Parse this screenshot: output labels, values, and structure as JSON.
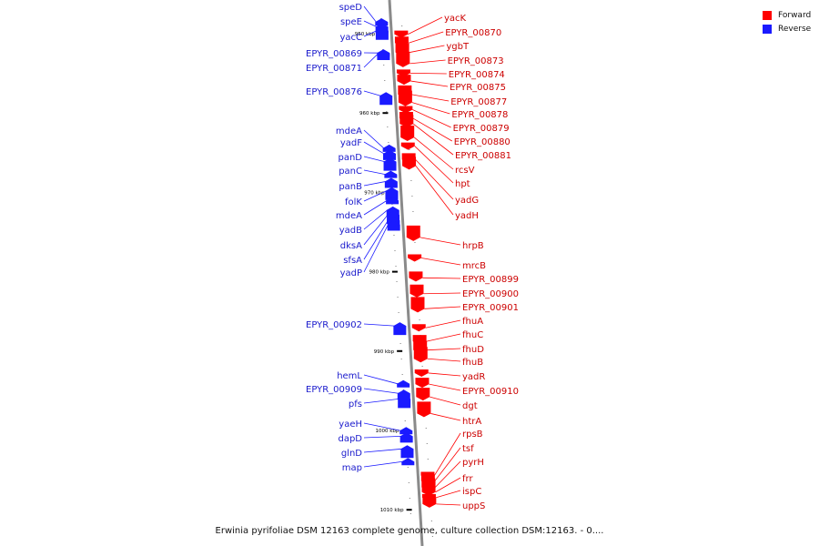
{
  "caption": "Erwinia pyrifoliae DSM 12163 complete genome, culture collection DSM:12163. - 0....",
  "legend": [
    {
      "label": "Forward",
      "color": "#ff0000"
    },
    {
      "label": "Reverse",
      "color": "#1a1aff"
    }
  ],
  "colors": {
    "forward": "#ff0000",
    "reverse": "#1a1aff",
    "backbone": "#999999",
    "forward_label": "#cc0000",
    "reverse_label": "#1a1acc"
  },
  "ticks": [
    {
      "label": "950 kbp",
      "kbp": 950
    },
    {
      "label": "960 kbp",
      "kbp": 960
    },
    {
      "label": "970 kbp",
      "kbp": 970
    },
    {
      "label": "980 kbp",
      "kbp": 980
    },
    {
      "label": "990 kbp",
      "kbp": 990
    },
    {
      "label": "1000 kbp",
      "kbp": 1000
    },
    {
      "label": "1010 kbp",
      "kbp": 1010
    }
  ],
  "reverse_genes": [
    {
      "name": "speD",
      "kbp": 948.3
    },
    {
      "name": "speE",
      "kbp": 948.9
    },
    {
      "name": "yacC",
      "kbp": 949.4
    },
    {
      "name": "EPYR_00869",
      "kbp": 952.2
    },
    {
      "name": "EPYR_00871",
      "kbp": 952.3
    },
    {
      "name": "EPYR_00876",
      "kbp": 957.6
    },
    {
      "name": "mdeA",
      "kbp": 964.2
    },
    {
      "name": "yadF",
      "kbp": 964.9
    },
    {
      "name": "panD",
      "kbp": 965.9
    },
    {
      "name": "panC",
      "kbp": 967.5
    },
    {
      "name": "panB",
      "kbp": 968.4
    },
    {
      "name": "folK",
      "kbp": 969.6
    },
    {
      "name": "mdeA",
      "kbp": 970.8
    },
    {
      "name": "yadB",
      "kbp": 972.0
    },
    {
      "name": "dksA",
      "kbp": 972.6
    },
    {
      "name": "sfsA",
      "kbp": 973.3
    },
    {
      "name": "yadP",
      "kbp": 973.8
    },
    {
      "name": "EPYR_00902",
      "kbp": 986.6
    },
    {
      "name": "hemL",
      "kbp": 993.9
    },
    {
      "name": "EPYR_00909",
      "kbp": 995.1
    },
    {
      "name": "pfs",
      "kbp": 995.8
    },
    {
      "name": "yaeH",
      "kbp": 999.8
    },
    {
      "name": "dapD",
      "kbp": 1000.5
    },
    {
      "name": "glnD",
      "kbp": 1002.1
    },
    {
      "name": "map",
      "kbp": 1003.7
    }
  ],
  "forward_genes": [
    {
      "name": "yacK",
      "kbp": 950.3
    },
    {
      "name": "EPYR_00870",
      "kbp": 951.4
    },
    {
      "name": "ygbT",
      "kbp": 952.6
    },
    {
      "name": "EPYR_00873",
      "kbp": 954.0
    },
    {
      "name": "EPYR_00874",
      "kbp": 955.2
    },
    {
      "name": "EPYR_00875",
      "kbp": 956.2
    },
    {
      "name": "EPYR_00877",
      "kbp": 957.9
    },
    {
      "name": "EPYR_00878",
      "kbp": 958.9
    },
    {
      "name": "EPYR_00879",
      "kbp": 959.8
    },
    {
      "name": "EPYR_00880",
      "kbp": 960.9
    },
    {
      "name": "EPYR_00881",
      "kbp": 961.6
    },
    {
      "name": "rcsV",
      "kbp": 963.3
    },
    {
      "name": "hpt",
      "kbp": 964.4
    },
    {
      "name": "yadG",
      "kbp": 966.1
    },
    {
      "name": "yadH",
      "kbp": 966.9
    },
    {
      "name": "hrpB",
      "kbp": 975.9
    },
    {
      "name": "mrcB",
      "kbp": 978.5
    },
    {
      "name": "EPYR_00899",
      "kbp": 981.0
    },
    {
      "name": "EPYR_00900",
      "kbp": 983.0
    },
    {
      "name": "EPYR_00901",
      "kbp": 984.9
    },
    {
      "name": "fhuA",
      "kbp": 987.3
    },
    {
      "name": "fhuC",
      "kbp": 989.0
    },
    {
      "name": "fhuD",
      "kbp": 990.1
    },
    {
      "name": "fhuB",
      "kbp": 991.2
    },
    {
      "name": "yadR",
      "kbp": 993.0
    },
    {
      "name": "EPYR_00910",
      "kbp": 994.4
    },
    {
      "name": "dgt",
      "kbp": 996.0
    },
    {
      "name": "htrA",
      "kbp": 998.1
    },
    {
      "name": "rpsB",
      "kbp": 1005.9
    },
    {
      "name": "tsf",
      "kbp": 1006.6
    },
    {
      "name": "pyrH",
      "kbp": 1007.4
    },
    {
      "name": "frr",
      "kbp": 1008.0
    },
    {
      "name": "ispC",
      "kbp": 1008.7
    },
    {
      "name": "uppS",
      "kbp": 1009.5
    }
  ]
}
